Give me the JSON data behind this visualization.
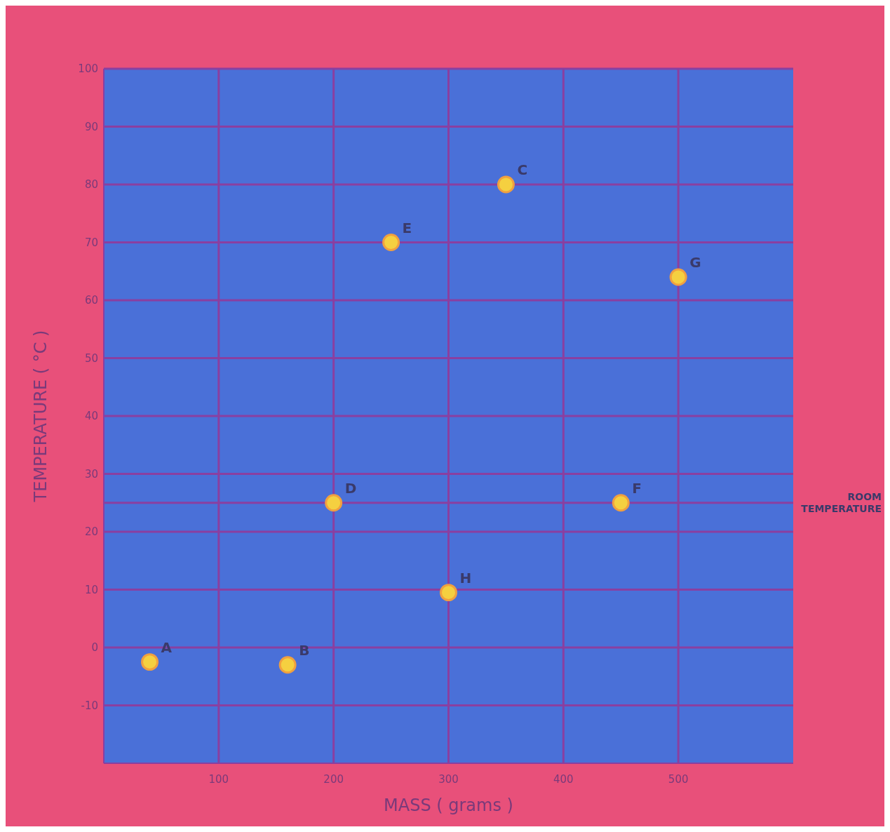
{
  "chart_data": {
    "type": "scatter",
    "xlabel": "MASS ( grams )",
    "ylabel": "TEMPERATURE ( °C )",
    "xlim": [
      0,
      600
    ],
    "xticks": [
      100,
      200,
      300,
      400,
      500
    ],
    "ylim": [
      -20,
      100
    ],
    "yticks": [
      -10,
      0,
      10,
      20,
      30,
      40,
      50,
      60,
      70,
      80,
      90,
      100
    ],
    "grid": true,
    "marker": "circle",
    "series": [
      {
        "color": "#f5d040",
        "x": [
          40,
          160,
          200,
          250,
          350,
          300,
          450,
          500
        ],
        "values": [
          -2.5,
          -3,
          25,
          70,
          80,
          9.5,
          25,
          64
        ]
      }
    ],
    "ref_lines": [
      {
        "axis": "y",
        "value": 25,
        "label": "ROOM TEMPERATURE",
        "color": "#8a3fa0"
      }
    ],
    "annotations": [
      {
        "text": "A",
        "x": 40,
        "y": -2.5
      },
      {
        "text": "B",
        "x": 160,
        "y": -3
      },
      {
        "text": "D",
        "x": 200,
        "y": 25
      },
      {
        "text": "E",
        "x": 250,
        "y": 70
      },
      {
        "text": "C",
        "x": 350,
        "y": 80
      },
      {
        "text": "H",
        "x": 300,
        "y": 9.5
      },
      {
        "text": "F",
        "x": 450,
        "y": 25
      },
      {
        "text": "G",
        "x": 500,
        "y": 64
      }
    ]
  }
}
